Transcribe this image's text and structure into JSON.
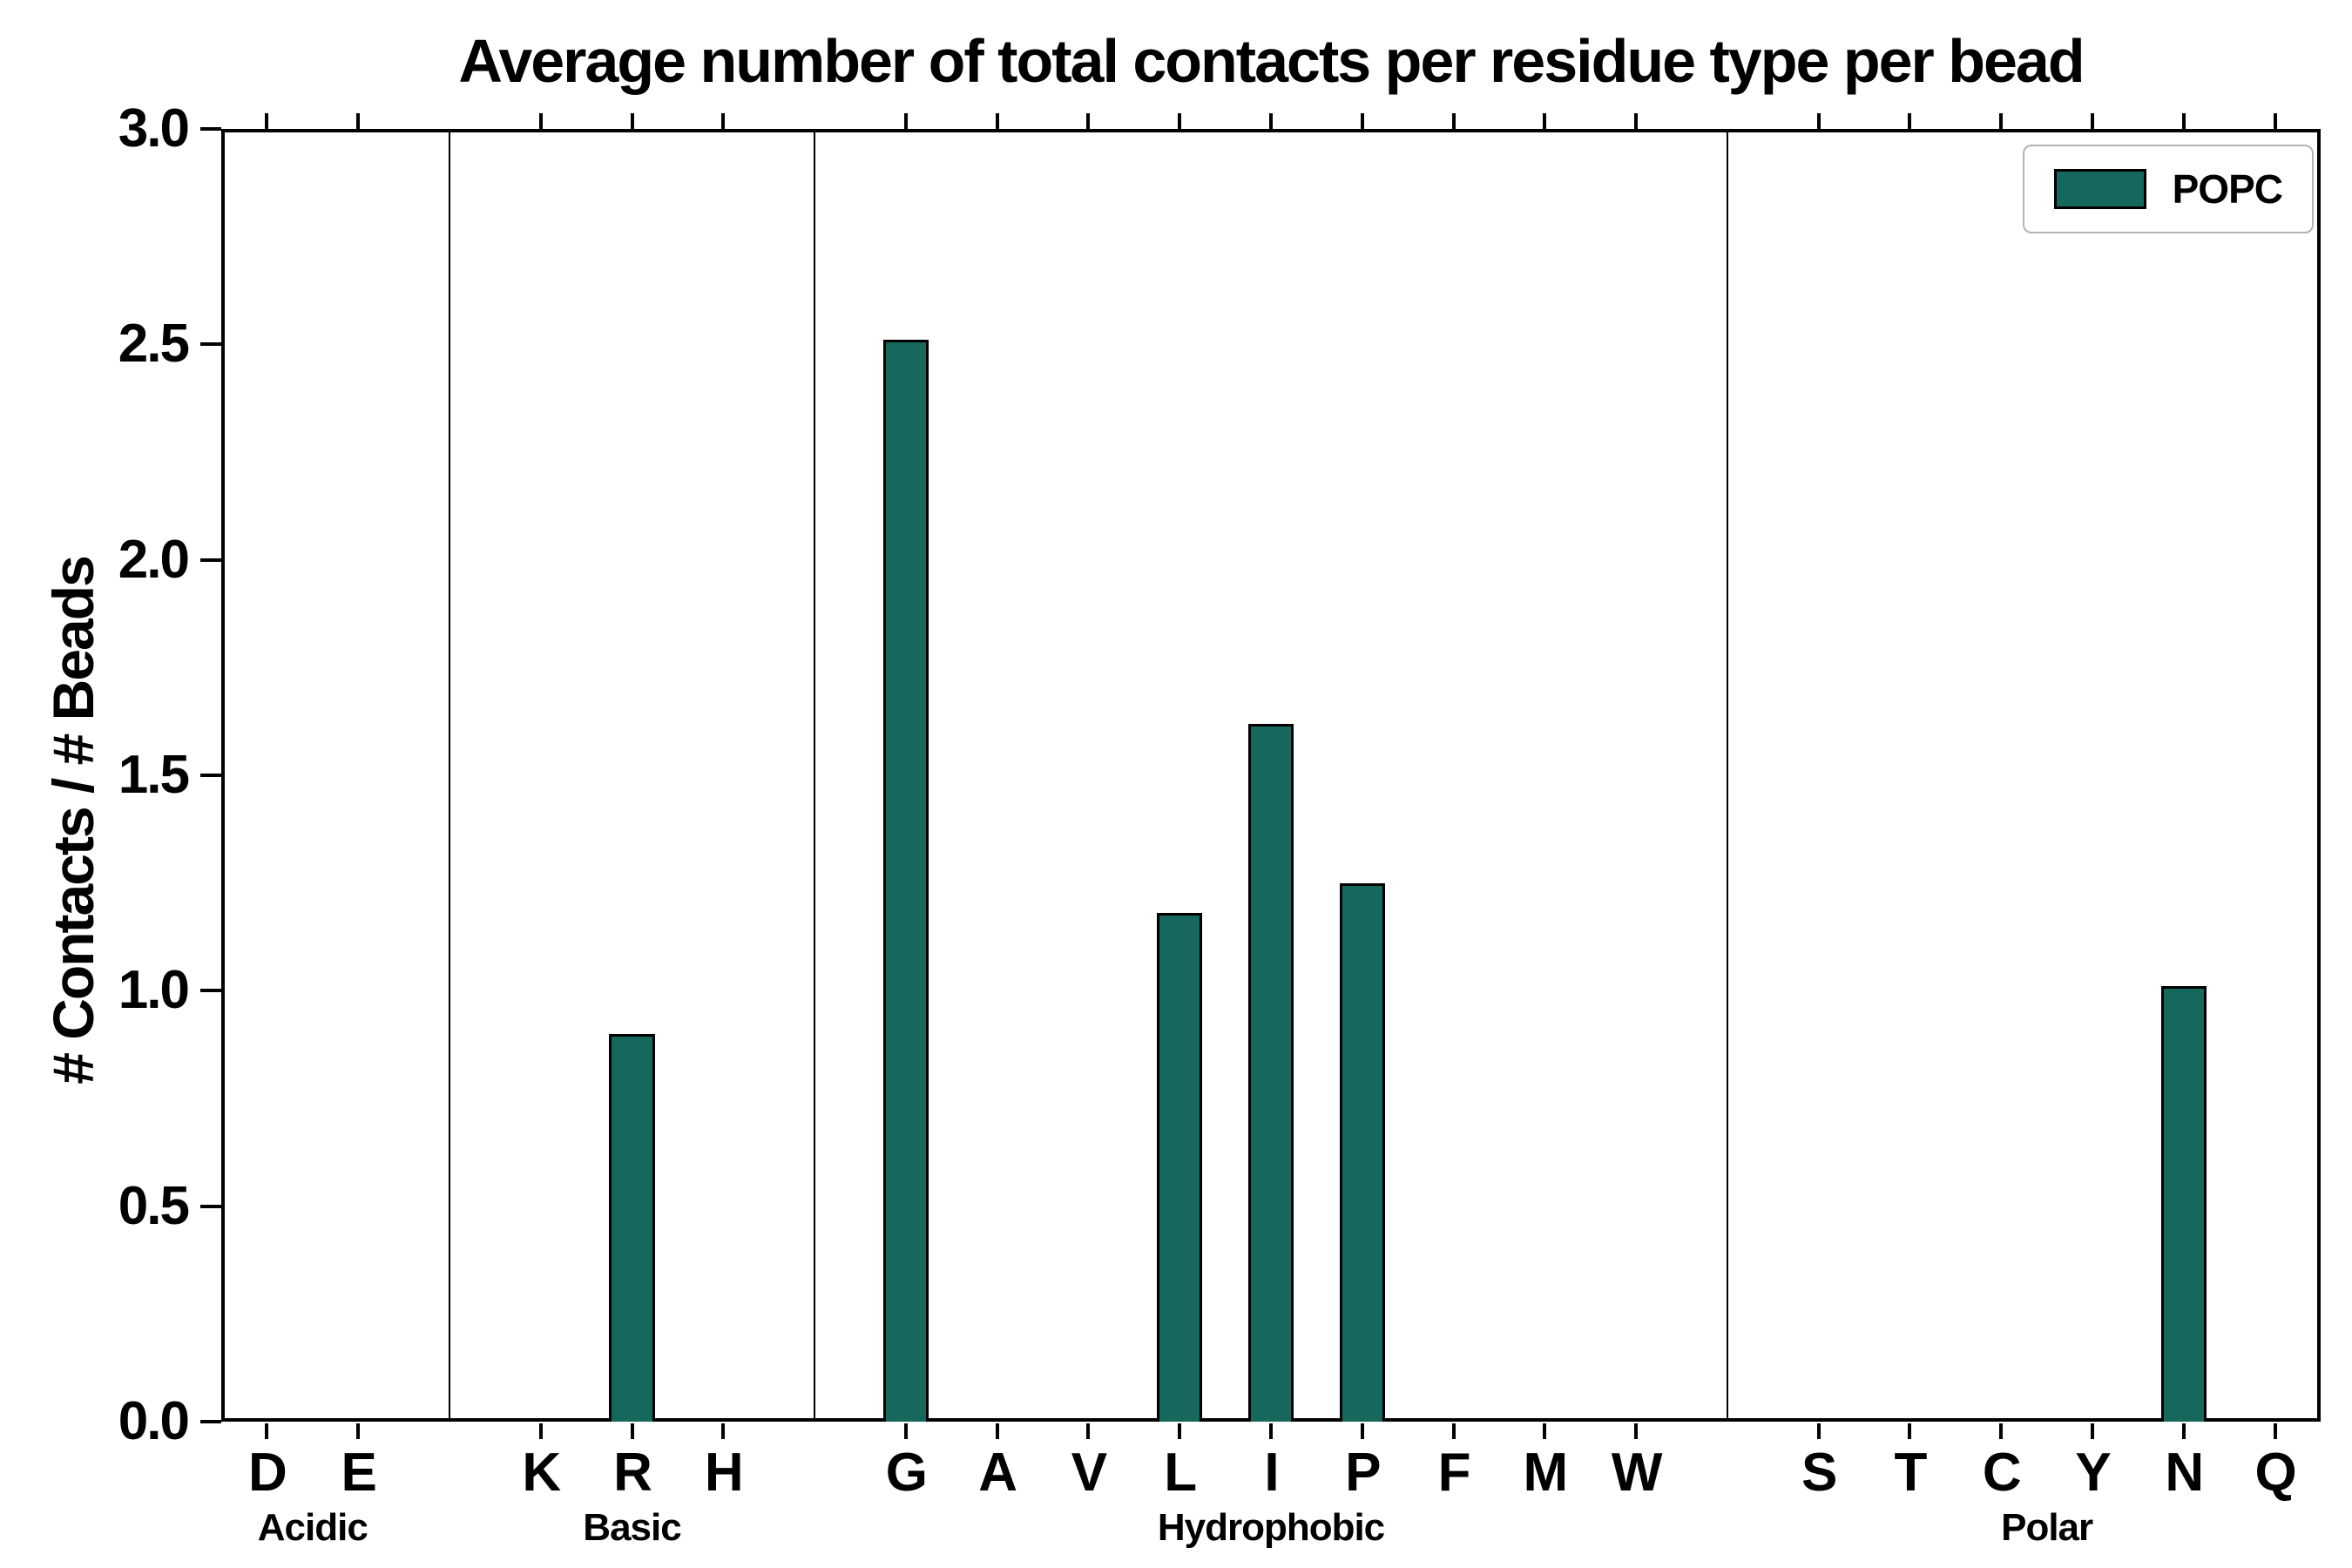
{
  "chart_data": {
    "type": "bar",
    "title": "Average number of total contacts per residue type per bead",
    "ylabel": "# Contacts / # Beads",
    "xlabel": "",
    "ylim": [
      0.0,
      3.0
    ],
    "yticks": [
      0.0,
      0.5,
      1.0,
      1.5,
      2.0,
      2.5,
      3.0
    ],
    "series_name": "POPC",
    "bar_color": "#16685c",
    "legend_position": "upper right",
    "grid": false,
    "groups": [
      {
        "label": "Acidic",
        "categories": [
          "D",
          "E"
        ],
        "values": [
          0,
          0
        ]
      },
      {
        "label": "Basic",
        "categories": [
          "K",
          "R",
          "H"
        ],
        "values": [
          0,
          0.9,
          0
        ]
      },
      {
        "label": "Hydrophobic",
        "categories": [
          "G",
          "A",
          "V",
          "L",
          "I",
          "P",
          "F",
          "M",
          "W"
        ],
        "values": [
          2.51,
          0,
          0,
          1.18,
          1.62,
          1.25,
          0,
          0,
          0
        ]
      },
      {
        "label": "Polar",
        "categories": [
          "S",
          "T",
          "C",
          "Y",
          "N",
          "Q"
        ],
        "values": [
          0,
          0,
          0,
          0,
          1.01,
          0
        ]
      }
    ]
  }
}
